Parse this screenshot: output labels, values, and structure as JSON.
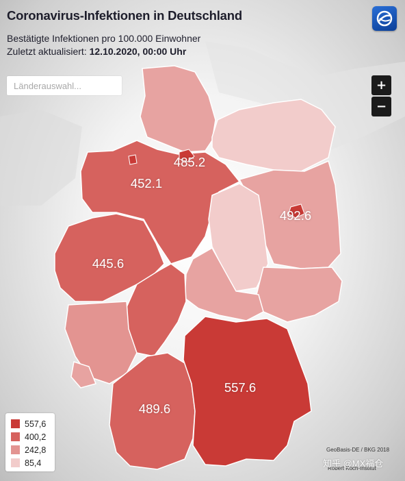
{
  "header": {
    "title": "Coronavirus-Infektionen in Deutschland",
    "subtitle": "Bestätigte Infektionen pro 100.000 Einwohner",
    "updated_label": "Zuletzt aktualisiert:",
    "updated_value": "12.10.2020, 00:00 Uhr"
  },
  "search": {
    "placeholder": "Länderauswahl..."
  },
  "zoom": {
    "in_label": "+",
    "out_label": "−"
  },
  "legend": {
    "items": [
      {
        "label": "557,6",
        "color": "#c93a36"
      },
      {
        "label": "400,2",
        "color": "#d6625e"
      },
      {
        "label": "242,8",
        "color": "#e39491"
      },
      {
        "label": "85,4",
        "color": "#f2cccb"
      }
    ]
  },
  "map_labels": {
    "hamburg": "485.2",
    "niedersachsen": "452.1",
    "berlin": "492.6",
    "nrw": "445.6",
    "bayern": "557.6",
    "bw": "489.6"
  },
  "credits": {
    "geobasis": "GeoBasis-DE / BKG 2018",
    "rki": "Robert Koch-Institut"
  },
  "watermark": "知乎 @MX福仓"
}
